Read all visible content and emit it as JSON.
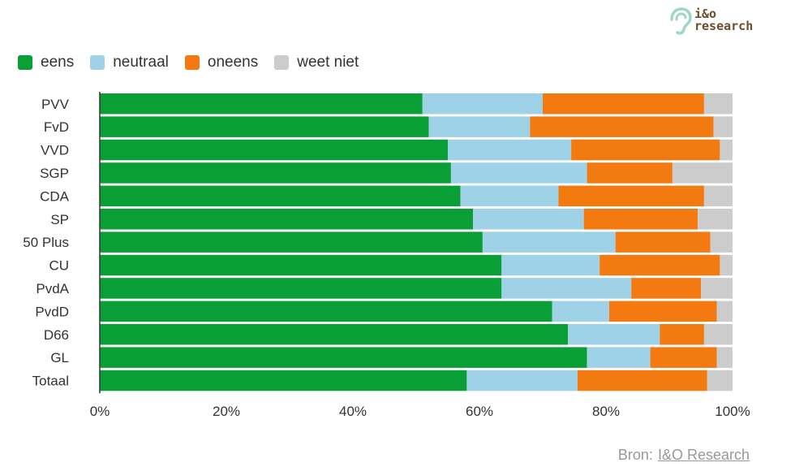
{
  "logo": {
    "line1": "i&o",
    "line2": "research"
  },
  "source": {
    "label": "Bron:",
    "link_text": "I&O Research"
  },
  "chart_data": {
    "type": "bar",
    "orientation": "horizontal",
    "stacked": true,
    "categories": [
      "PVV",
      "FvD",
      "VVD",
      "SGP",
      "CDA",
      "SP",
      "50 Plus",
      "CU",
      "PvdA",
      "PvdD",
      "D66",
      "GL",
      "Totaal"
    ],
    "series": [
      {
        "name": "eens",
        "color": "#0a9e37",
        "values": [
          51,
          52,
          55,
          55.5,
          57,
          59,
          60.5,
          63.5,
          63.5,
          71.5,
          74,
          77,
          58
        ]
      },
      {
        "name": "neutraal",
        "color": "#a0d2e7",
        "values": [
          19,
          16,
          19.5,
          21.5,
          15.5,
          17.5,
          21,
          15.5,
          20.5,
          9,
          14.5,
          10,
          17.5
        ]
      },
      {
        "name": "oneens",
        "color": "#f27a10",
        "values": [
          25.5,
          29,
          23.5,
          13.5,
          23,
          18,
          15,
          19,
          11,
          17,
          7,
          10.5,
          20.5
        ]
      },
      {
        "name": "weet niet",
        "color": "#cccccc",
        "values": [
          4.5,
          3,
          2,
          9.5,
          4.5,
          5.5,
          3.5,
          2,
          5,
          2.5,
          4.5,
          2.5,
          4
        ]
      }
    ],
    "xlim": [
      0,
      100
    ],
    "xticks": [
      "0%",
      "20%",
      "40%",
      "60%",
      "80%",
      "100%"
    ],
    "legend_position": "top-left",
    "grid": false
  }
}
